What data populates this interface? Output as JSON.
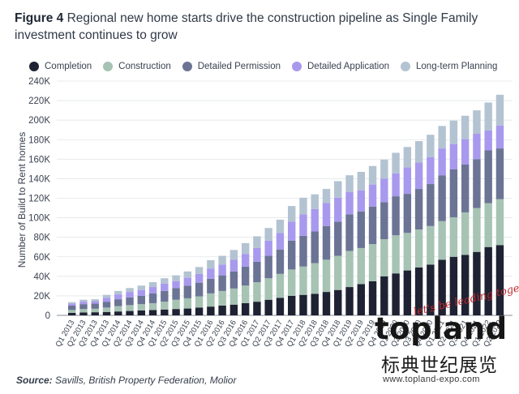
{
  "figure": {
    "label": "Figure 4",
    "title": "Regional new home starts drive the construction pipeline as Single Family investment continues to grow"
  },
  "source": {
    "label": "Source:",
    "text": "Savills, British Property Federation, Molior"
  },
  "watermark": {
    "brand": "topland",
    "slogan": "let's be leading together",
    "chinese": "标典世纪展览",
    "url": "www.topland-expo.com"
  },
  "colors": {
    "completion": "#1f2233",
    "construction": "#a6c3b4",
    "detailed_permission": "#6b7495",
    "detailed_application": "#a899ee",
    "long_term_planning": "#b3c3d2"
  },
  "chart_data": {
    "type": "bar",
    "stacked": true,
    "ylabel": "Number of Build to Rent homes",
    "xlabel": "",
    "ylim": [
      0,
      240000
    ],
    "yticks": [
      0,
      20000,
      40000,
      60000,
      80000,
      100000,
      120000,
      140000,
      160000,
      180000,
      200000,
      220000,
      240000
    ],
    "ytick_labels": [
      "0",
      "20K",
      "40K",
      "60K",
      "80K",
      "100K",
      "120K",
      "140K",
      "160K",
      "180K",
      "200K",
      "220K",
      "240K"
    ],
    "grid": true,
    "legend_position": "top",
    "categories": [
      "Q1 2013",
      "Q2 2013",
      "Q3 2013",
      "Q4 2013",
      "Q1 2014",
      "Q2 2014",
      "Q3 2014",
      "Q4 2014",
      "Q1 2015",
      "Q2 2015",
      "Q3 2015",
      "Q4 2015",
      "Q1 2016",
      "Q2 2016",
      "Q3 2016",
      "Q4 2016",
      "Q1 2017",
      "Q2 2017",
      "Q3 2017",
      "Q4 2017",
      "Q1 2018",
      "Q2 2018",
      "Q3 2018",
      "Q4 2018",
      "Q1 2019",
      "Q2 2019",
      "Q3 2019",
      "Q4 2019",
      "Q1 2020",
      "Q2 2020",
      "Q3 2020",
      "Q4 2020",
      "Q1 2021",
      "Q2 2021",
      "Q3 2021",
      "Q4 2021",
      "Q1 2022",
      "Q2 2022"
    ],
    "series": [
      {
        "name": "Completion",
        "color_key": "completion",
        "values": [
          2500,
          3000,
          3200,
          3500,
          4000,
          4500,
          5000,
          5500,
          6000,
          6500,
          7000,
          8000,
          9000,
          10000,
          11000,
          12500,
          14000,
          16000,
          18000,
          20000,
          21000,
          22000,
          24000,
          26000,
          29000,
          32000,
          35000,
          40000,
          43000,
          46000,
          49000,
          52000,
          57000,
          60000,
          62000,
          65000,
          70000,
          72000
        ]
      },
      {
        "name": "Construction",
        "color_key": "construction",
        "values": [
          3000,
          3500,
          3600,
          4500,
          5500,
          6000,
          6500,
          7000,
          8000,
          9500,
          10500,
          11500,
          13500,
          15000,
          16500,
          18000,
          20000,
          22000,
          24500,
          27000,
          29000,
          31500,
          33000,
          35000,
          37000,
          37000,
          38000,
          38000,
          39000,
          38500,
          39000,
          39500,
          39500,
          40500,
          43500,
          45000,
          45000,
          47000
        ]
      },
      {
        "name": "Detailed Permission",
        "color_key": "detailed_permission",
        "values": [
          4500,
          5000,
          5200,
          6000,
          7000,
          8000,
          8500,
          10000,
          11000,
          12000,
          13000,
          14000,
          15000,
          16000,
          17500,
          19500,
          21000,
          23000,
          25000,
          29500,
          31500,
          32500,
          34500,
          35000,
          37500,
          37500,
          38500,
          38000,
          40000,
          40000,
          41500,
          43000,
          47000,
          49000,
          49000,
          50000,
          54000,
          52000
        ]
      },
      {
        "name": "Detailed Application",
        "color_key": "detailed_application",
        "values": [
          2000,
          2500,
          2500,
          4000,
          5000,
          5500,
          6000,
          6500,
          7500,
          7000,
          8000,
          9000,
          10500,
          11000,
          12000,
          13000,
          14000,
          15500,
          17000,
          19500,
          22000,
          23000,
          23500,
          24500,
          23000,
          21500,
          22500,
          24000,
          23500,
          27000,
          27000,
          27500,
          27500,
          26000,
          26000,
          26000,
          20500,
          23500
        ]
      },
      {
        "name": "Long-term Planning",
        "color_key": "long_term_planning",
        "values": [
          1500,
          2000,
          2000,
          3000,
          3500,
          4000,
          4500,
          5000,
          5500,
          6000,
          6500,
          7000,
          8500,
          9000,
          10000,
          11000,
          12000,
          13000,
          13500,
          16000,
          17000,
          15000,
          14500,
          17000,
          17000,
          19000,
          19000,
          19500,
          21000,
          21000,
          22000,
          23000,
          23000,
          24000,
          24000,
          24000,
          28500,
          31500
        ]
      }
    ]
  }
}
